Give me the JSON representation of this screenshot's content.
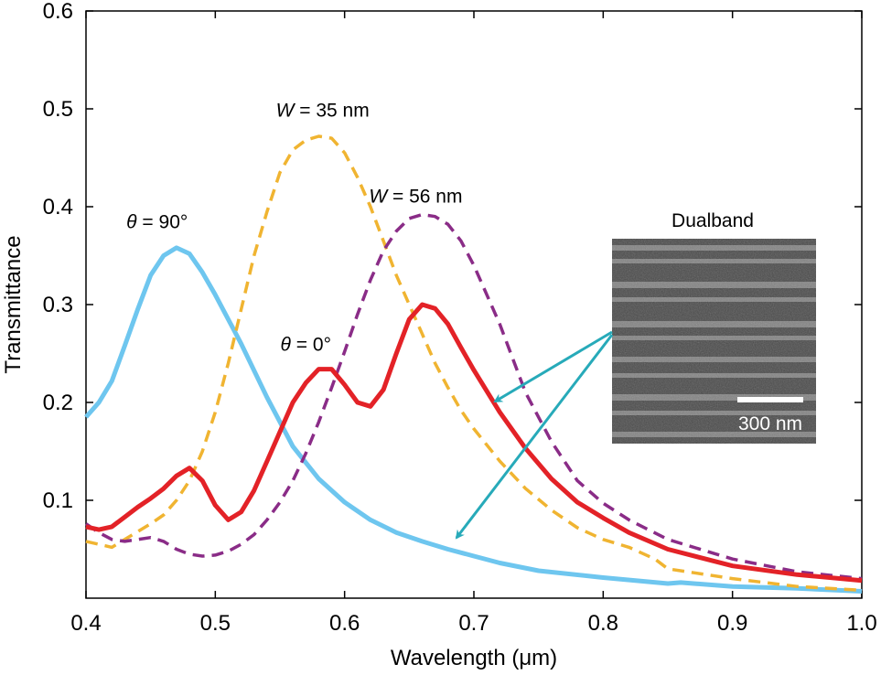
{
  "chart_data": {
    "type": "line",
    "title": "",
    "xlabel": "Wavelength (μm)",
    "ylabel": "Transmittance",
    "xlim": [
      0.4,
      1.0
    ],
    "ylim": [
      0.0,
      0.6
    ],
    "xticks": [
      0.4,
      0.5,
      0.6,
      0.7,
      0.8,
      0.9,
      1.0
    ],
    "xtick_labels": [
      "0.4",
      "0.5",
      "0.6",
      "0.7",
      "0.8",
      "0.9",
      "1.0"
    ],
    "yticks": [
      0.1,
      0.2,
      0.3,
      0.4,
      0.5,
      0.6
    ],
    "ytick_labels": [
      "0.1",
      "0.2",
      "0.3",
      "0.4",
      "0.5",
      "0.6"
    ],
    "grid": false,
    "series": [
      {
        "name": "θ = 90°",
        "color": "#6ec6ef",
        "style": "solid",
        "x": [
          0.4,
          0.41,
          0.42,
          0.43,
          0.44,
          0.45,
          0.46,
          0.47,
          0.48,
          0.49,
          0.5,
          0.52,
          0.54,
          0.56,
          0.58,
          0.6,
          0.62,
          0.64,
          0.66,
          0.68,
          0.7,
          0.72,
          0.75,
          0.8,
          0.85,
          0.86,
          0.9,
          0.95,
          1.0
        ],
        "y": [
          0.185,
          0.2,
          0.222,
          0.258,
          0.295,
          0.33,
          0.35,
          0.358,
          0.352,
          0.333,
          0.31,
          0.26,
          0.205,
          0.155,
          0.122,
          0.098,
          0.08,
          0.067,
          0.058,
          0.05,
          0.043,
          0.036,
          0.028,
          0.021,
          0.015,
          0.016,
          0.012,
          0.01,
          0.007
        ]
      },
      {
        "name": "θ = 0°",
        "color": "#e32227",
        "style": "solid",
        "x": [
          0.4,
          0.41,
          0.42,
          0.43,
          0.44,
          0.45,
          0.46,
          0.47,
          0.48,
          0.49,
          0.5,
          0.51,
          0.52,
          0.53,
          0.54,
          0.55,
          0.56,
          0.57,
          0.58,
          0.59,
          0.6,
          0.61,
          0.62,
          0.63,
          0.64,
          0.65,
          0.66,
          0.67,
          0.68,
          0.69,
          0.7,
          0.72,
          0.74,
          0.76,
          0.78,
          0.8,
          0.82,
          0.85,
          0.9,
          0.95,
          1.0
        ],
        "y": [
          0.073,
          0.07,
          0.073,
          0.083,
          0.093,
          0.102,
          0.112,
          0.125,
          0.133,
          0.12,
          0.095,
          0.08,
          0.088,
          0.11,
          0.14,
          0.17,
          0.2,
          0.22,
          0.234,
          0.234,
          0.218,
          0.2,
          0.196,
          0.213,
          0.25,
          0.285,
          0.3,
          0.296,
          0.28,
          0.256,
          0.233,
          0.19,
          0.153,
          0.122,
          0.098,
          0.082,
          0.067,
          0.05,
          0.033,
          0.024,
          0.018
        ]
      },
      {
        "name": "W = 35 nm",
        "color": "#f0b431",
        "style": "dashed",
        "x": [
          0.4,
          0.41,
          0.42,
          0.43,
          0.44,
          0.45,
          0.46,
          0.47,
          0.48,
          0.49,
          0.5,
          0.51,
          0.52,
          0.53,
          0.54,
          0.55,
          0.56,
          0.57,
          0.58,
          0.59,
          0.6,
          0.61,
          0.62,
          0.63,
          0.64,
          0.65,
          0.66,
          0.67,
          0.68,
          0.69,
          0.7,
          0.72,
          0.74,
          0.76,
          0.78,
          0.8,
          0.82,
          0.84,
          0.85,
          0.9,
          0.95,
          1.0
        ],
        "y": [
          0.058,
          0.055,
          0.052,
          0.06,
          0.068,
          0.076,
          0.085,
          0.1,
          0.12,
          0.15,
          0.19,
          0.24,
          0.295,
          0.35,
          0.395,
          0.435,
          0.458,
          0.468,
          0.472,
          0.47,
          0.455,
          0.43,
          0.4,
          0.365,
          0.33,
          0.3,
          0.27,
          0.24,
          0.215,
          0.192,
          0.173,
          0.14,
          0.112,
          0.09,
          0.072,
          0.06,
          0.052,
          0.04,
          0.03,
          0.02,
          0.012,
          0.008
        ]
      },
      {
        "name": "W = 56 nm",
        "color": "#8a2c87",
        "style": "dashed",
        "x": [
          0.4,
          0.41,
          0.42,
          0.43,
          0.44,
          0.45,
          0.46,
          0.47,
          0.48,
          0.49,
          0.5,
          0.51,
          0.52,
          0.53,
          0.54,
          0.55,
          0.56,
          0.57,
          0.58,
          0.59,
          0.6,
          0.61,
          0.62,
          0.63,
          0.64,
          0.65,
          0.66,
          0.67,
          0.68,
          0.69,
          0.7,
          0.72,
          0.74,
          0.76,
          0.78,
          0.8,
          0.82,
          0.85,
          0.9,
          0.95,
          1.0
        ],
        "y": [
          0.076,
          0.067,
          0.06,
          0.058,
          0.06,
          0.062,
          0.058,
          0.05,
          0.045,
          0.043,
          0.044,
          0.048,
          0.055,
          0.065,
          0.08,
          0.098,
          0.12,
          0.148,
          0.18,
          0.215,
          0.252,
          0.29,
          0.325,
          0.355,
          0.375,
          0.388,
          0.392,
          0.39,
          0.382,
          0.365,
          0.34,
          0.28,
          0.21,
          0.16,
          0.12,
          0.097,
          0.08,
          0.06,
          0.04,
          0.027,
          0.02
        ]
      }
    ],
    "annotations": [
      {
        "text_var": "θ",
        "text_rest": " = 90°",
        "x": 0.455,
        "y": 0.378
      },
      {
        "text_var": "θ",
        "text_rest": " = 0°",
        "x": 0.57,
        "y": 0.253
      },
      {
        "text_var": "W",
        "text_rest": " = 35 nm",
        "x": 0.583,
        "y": 0.492
      },
      {
        "text_var": "W",
        "text_rest": " = 56 nm",
        "x": 0.655,
        "y": 0.404
      }
    ],
    "inset": {
      "title": "Dualband",
      "scale_bar_label": "300 nm",
      "arrow_color": "#27aab9"
    }
  }
}
